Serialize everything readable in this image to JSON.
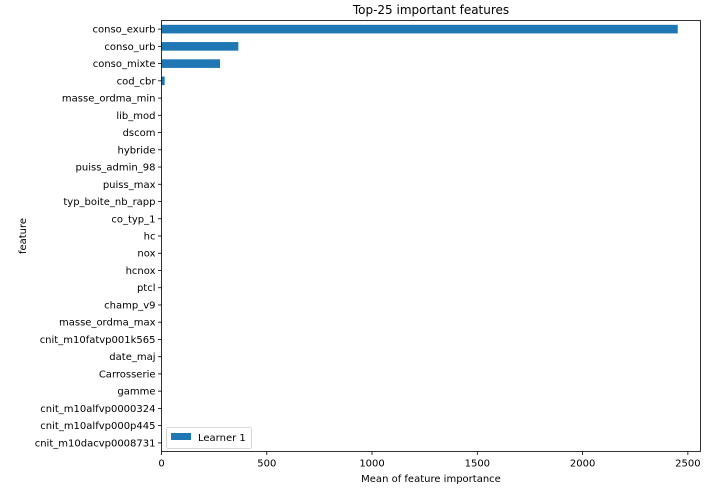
{
  "chart_data": {
    "type": "bar",
    "orientation": "horizontal",
    "title": "Top-25 important features",
    "xlabel": "Mean of feature importance",
    "ylabel": "feature",
    "xlim": [
      0,
      2560
    ],
    "xticks": [
      0,
      500,
      1000,
      1500,
      2000,
      2500
    ],
    "xtick_labels": [
      "0",
      "500",
      "1000",
      "1500",
      "2000",
      "2500"
    ],
    "grid": false,
    "legend_position": "bottom-left",
    "bar_color": "#1f77b4",
    "categories": [
      "conso_exurb",
      "conso_urb",
      "conso_mixte",
      "cod_cbr",
      "masse_ordma_min",
      "lib_mod",
      "dscom",
      "hybride",
      "puiss_admin_98",
      "puiss_max",
      "typ_boite_nb_rapp",
      "co_typ_1",
      "hc",
      "nox",
      "hcnox",
      "ptcl",
      "champ_v9",
      "masse_ordma_max",
      "cnit_m10fatvp001k565",
      "date_maj",
      "Carrosserie",
      "gamme",
      "cnit_m10alfvp0000324",
      "cnit_m10alfvp000p445",
      "cnit_m10dacvp0008731"
    ],
    "series": [
      {
        "name": "Learner 1",
        "values": [
          2452,
          365,
          278,
          15,
          1,
          1,
          1,
          1,
          1,
          1,
          1,
          1,
          1,
          1,
          1,
          1,
          1,
          1,
          1,
          1,
          1,
          1,
          1,
          1,
          1
        ]
      }
    ]
  }
}
